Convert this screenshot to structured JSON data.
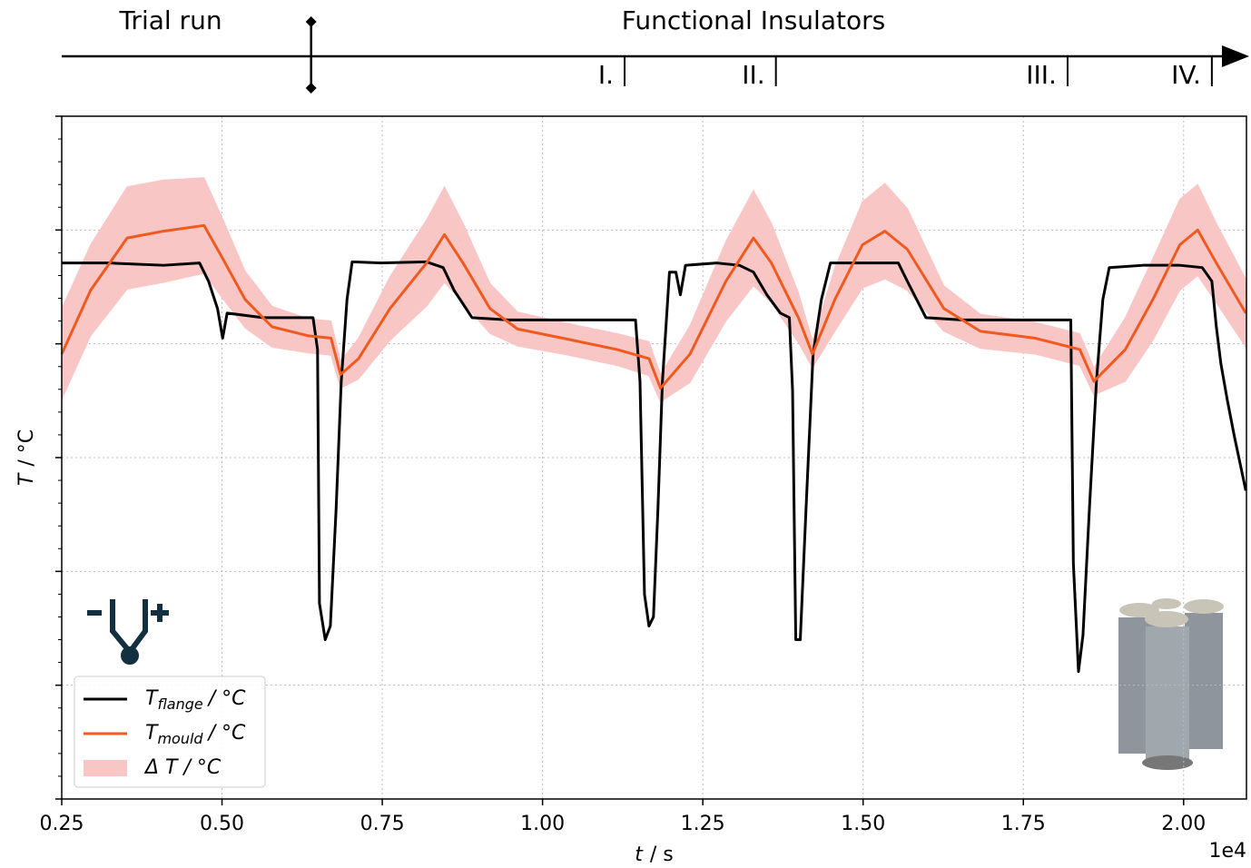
{
  "chart_data": {
    "type": "line",
    "timeline": {
      "left_label": "Trial run",
      "right_label": "Functional Insulators",
      "trial_end": 0.639,
      "markers": [
        {
          "label": "I.",
          "x": 1.128
        },
        {
          "label": "II.",
          "x": 1.364
        },
        {
          "label": "III.",
          "x": 1.819
        },
        {
          "label": "IV.",
          "x": 2.044
        }
      ]
    },
    "xlabel": {
      "symbol": "t",
      "unit": "/ s"
    },
    "x_offset_label": "1e4",
    "ylabel": {
      "symbol": "T",
      "unit": "/ °C"
    },
    "xlim": [
      0.25,
      2.098
    ],
    "xticks": [
      0.25,
      {
        "value": 0.5,
        "label": "0.50"
      },
      0.75,
      {
        "value": 1,
        "label": "1.00"
      },
      1.25,
      {
        "value": 1.5,
        "label": "1.50"
      },
      1.75,
      {
        "value": 2,
        "label": "2.00"
      }
    ],
    "ylim": [
      0,
      6
    ],
    "yticks": [
      0,
      1,
      2,
      3,
      4,
      5,
      6
    ],
    "ytick_labels": false,
    "y_minor_per_major": 4,
    "grid": true,
    "series": [
      {
        "name": "T",
        "name_sub": "flange",
        "name_unit": "/ °C",
        "color": "#000000",
        "x": [
          0.25,
          0.324,
          0.409,
          0.465,
          0.479,
          0.493,
          0.501,
          0.508,
          0.564,
          0.642,
          0.649,
          0.652,
          0.661,
          0.669,
          0.678,
          0.686,
          0.695,
          0.703,
          0.748,
          0.819,
          0.845,
          0.862,
          0.89,
          0.947,
          1.003,
          1.088,
          1.145,
          1.152,
          1.159,
          1.166,
          1.173,
          1.18,
          1.187,
          1.198,
          1.208,
          1.215,
          1.223,
          1.272,
          1.307,
          1.329,
          1.35,
          1.371,
          1.385,
          1.39,
          1.395,
          1.402,
          1.411,
          1.422,
          1.435,
          1.449,
          1.513,
          1.555,
          1.569,
          1.598,
          1.654,
          1.711,
          1.768,
          1.824,
          1.828,
          1.836,
          1.843,
          1.853,
          1.864,
          1.874,
          1.884,
          1.937,
          1.994,
          2.029,
          2.044,
          2.051,
          2.058,
          2.068,
          2.079,
          2.097
        ],
        "values": [
          4.71,
          4.71,
          4.69,
          4.71,
          4.55,
          4.31,
          4.05,
          4.27,
          4.23,
          4.23,
          3.95,
          1.72,
          1.4,
          1.52,
          2.55,
          3.67,
          4.39,
          4.72,
          4.71,
          4.72,
          4.67,
          4.47,
          4.23,
          4.21,
          4.21,
          4.21,
          4.21,
          3.67,
          1.8,
          1.52,
          1.6,
          2.55,
          3.67,
          4.63,
          4.63,
          4.43,
          4.69,
          4.71,
          4.69,
          4.63,
          4.43,
          4.27,
          4.23,
          3.59,
          1.4,
          1.4,
          2.55,
          3.91,
          4.39,
          4.71,
          4.71,
          4.71,
          4.55,
          4.23,
          4.21,
          4.21,
          4.21,
          4.21,
          2.07,
          1.12,
          1.44,
          2.55,
          3.67,
          4.39,
          4.67,
          4.69,
          4.69,
          4.67,
          4.55,
          4.15,
          3.83,
          3.51,
          3.19,
          2.71
        ]
      },
      {
        "name": "T",
        "name_sub": "mould",
        "name_unit": "/ °C",
        "color": "#f05a1e",
        "x": [
          0.25,
          0.295,
          0.352,
          0.409,
          0.472,
          0.501,
          0.536,
          0.578,
          0.635,
          0.67,
          0.685,
          0.713,
          0.762,
          0.819,
          0.847,
          0.876,
          0.918,
          0.961,
          1.031,
          1.116,
          1.166,
          1.184,
          1.23,
          1.286,
          1.329,
          1.357,
          1.399,
          1.421,
          1.456,
          1.499,
          1.534,
          1.569,
          1.626,
          1.683,
          1.768,
          1.838,
          1.86,
          1.909,
          1.952,
          1.994,
          2.022,
          2.051,
          2.097
        ],
        "values": [
          3.91,
          4.47,
          4.93,
          4.99,
          5.04,
          4.75,
          4.39,
          4.15,
          4.07,
          4.05,
          3.73,
          3.87,
          4.31,
          4.71,
          4.96,
          4.71,
          4.31,
          4.13,
          4.05,
          3.95,
          3.87,
          3.61,
          3.91,
          4.55,
          4.93,
          4.71,
          4.23,
          3.91,
          4.39,
          4.87,
          4.99,
          4.83,
          4.31,
          4.11,
          4.05,
          3.95,
          3.67,
          3.95,
          4.39,
          4.87,
          5.0,
          4.71,
          4.27
        ]
      }
    ],
    "band": {
      "name": "Δ T / °C",
      "color": "#f9c6c6",
      "x": [
        0.25,
        0.295,
        0.352,
        0.409,
        0.472,
        0.501,
        0.536,
        0.578,
        0.635,
        0.67,
        0.685,
        0.713,
        0.762,
        0.819,
        0.847,
        0.876,
        0.918,
        0.961,
        1.031,
        1.116,
        1.166,
        1.184,
        1.23,
        1.286,
        1.329,
        1.357,
        1.399,
        1.421,
        1.456,
        1.499,
        1.534,
        1.569,
        1.626,
        1.683,
        1.768,
        1.838,
        1.86,
        1.909,
        1.952,
        1.994,
        2.022,
        2.051,
        2.097
      ],
      "lower": [
        3.51,
        4.07,
        4.48,
        4.54,
        4.62,
        4.4,
        4.14,
        3.97,
        3.92,
        3.9,
        3.61,
        3.69,
        4.03,
        4.33,
        4.54,
        4.36,
        4.09,
        3.98,
        3.91,
        3.81,
        3.72,
        3.49,
        3.66,
        4.2,
        4.51,
        4.36,
        4.01,
        3.79,
        4.11,
        4.49,
        4.57,
        4.47,
        4.11,
        3.96,
        3.91,
        3.81,
        3.55,
        3.67,
        4.03,
        4.47,
        4.6,
        4.36,
        3.97
      ],
      "upper": [
        4.31,
        4.87,
        5.38,
        5.44,
        5.46,
        5.1,
        4.64,
        4.33,
        4.22,
        4.2,
        3.85,
        4.05,
        4.59,
        5.09,
        5.38,
        5.06,
        4.53,
        4.28,
        4.19,
        4.09,
        4.02,
        3.73,
        4.16,
        4.9,
        5.35,
        5.06,
        4.45,
        4.03,
        4.67,
        5.25,
        5.41,
        5.19,
        4.51,
        4.26,
        4.19,
        4.09,
        3.79,
        4.23,
        4.75,
        5.27,
        5.4,
        5.06,
        4.57
      ]
    }
  }
}
